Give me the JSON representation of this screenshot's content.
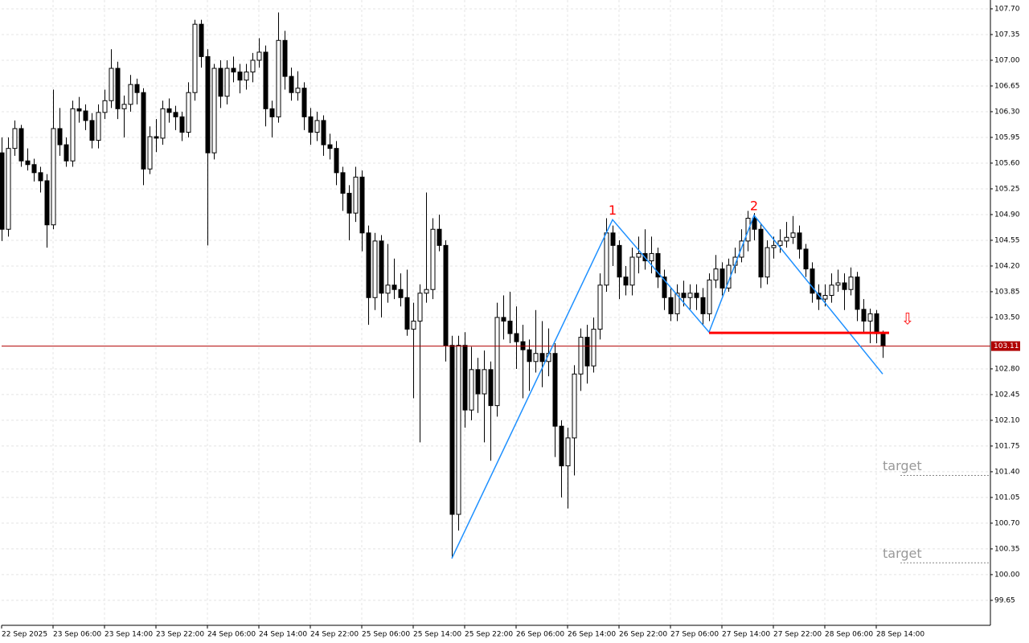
{
  "chart_data": {
    "type": "candlestick",
    "ylim": [
      99.31,
      107.82
    ],
    "xlim": [
      0,
      153.75
    ],
    "grid": true,
    "up_color": "#ffffff",
    "down_color": "#000000",
    "yticks": [
      {
        "value": 107.7,
        "label": "107.70"
      },
      107.35,
      {
        "value": 107.0,
        "label": "107.00"
      },
      106.65,
      {
        "value": 106.3,
        "label": "106.30"
      },
      105.95,
      {
        "value": 105.6,
        "label": "105.60"
      },
      105.25,
      {
        "value": 104.9,
        "label": "104.90"
      },
      104.55,
      {
        "value": 104.2,
        "label": "104.20"
      },
      103.85,
      {
        "value": 103.5,
        "label": "103.50"
      },
      {
        "value": 102.8,
        "label": "102.80"
      },
      102.45,
      {
        "value": 102.1,
        "label": "102.10"
      },
      101.75,
      {
        "value": 101.4,
        "label": "101.40"
      },
      101.05,
      {
        "value": 100.7,
        "label": "100.70"
      },
      100.35,
      {
        "value": 100.0,
        "label": "100.00"
      },
      99.65
    ],
    "xticks": [
      {
        "value": 0,
        "label": "22 Sep 2025"
      },
      {
        "value": 8,
        "label": "23 Sep 06:00"
      },
      {
        "value": 16,
        "label": "23 Sep 14:00"
      },
      {
        "value": 24,
        "label": "23 Sep 22:00"
      },
      {
        "value": 32,
        "label": "24 Sep 06:00"
      },
      {
        "value": 40,
        "label": "24 Sep 14:00"
      },
      {
        "value": 48,
        "label": "24 Sep 22:00"
      },
      {
        "value": 56,
        "label": "25 Sep 06:00"
      },
      {
        "value": 64,
        "label": "25 Sep 14:00"
      },
      {
        "value": 72,
        "label": "25 Sep 22:00"
      },
      {
        "value": 80,
        "label": "26 Sep 06:00"
      },
      {
        "value": 88,
        "label": "26 Sep 14:00"
      },
      {
        "value": 96,
        "label": "26 Sep 22:00"
      },
      {
        "value": 104,
        "label": "27 Sep 06:00"
      },
      {
        "value": 112,
        "label": "27 Sep 14:00"
      },
      {
        "value": 120,
        "label": "27 Sep 22:00"
      },
      {
        "value": 128,
        "label": "28 Sep 06:00"
      },
      {
        "value": 136,
        "label": "28 Sep 14:00"
      }
    ],
    "ohlc": [
      [
        105.74,
        105.95,
        104.54,
        104.7
      ],
      [
        104.7,
        105.95,
        104.6,
        105.8
      ],
      [
        105.8,
        106.18,
        105.7,
        106.07
      ],
      [
        106.07,
        106.12,
        105.55,
        105.63
      ],
      [
        105.63,
        105.8,
        105.5,
        105.58
      ],
      [
        105.58,
        105.66,
        105.35,
        105.47
      ],
      [
        105.47,
        105.55,
        105.2,
        105.36
      ],
      [
        105.36,
        105.45,
        104.45,
        104.76
      ],
      [
        104.76,
        106.6,
        104.7,
        106.07
      ],
      [
        106.07,
        106.35,
        105.7,
        105.85
      ],
      [
        105.85,
        105.95,
        105.55,
        105.63
      ],
      [
        105.63,
        106.45,
        105.55,
        106.34
      ],
      [
        106.34,
        106.5,
        106.15,
        106.31
      ],
      [
        106.31,
        106.4,
        106.05,
        106.18
      ],
      [
        106.18,
        106.28,
        105.8,
        105.91
      ],
      [
        105.91,
        106.4,
        105.8,
        106.29
      ],
      [
        106.29,
        106.6,
        106.2,
        106.45
      ],
      [
        106.45,
        107.15,
        106.35,
        106.89
      ],
      [
        106.89,
        106.98,
        106.2,
        106.34
      ],
      [
        106.34,
        106.52,
        105.95,
        106.4
      ],
      [
        106.4,
        106.8,
        106.3,
        106.67
      ],
      [
        106.67,
        106.75,
        106.4,
        106.56
      ],
      [
        106.56,
        106.62,
        105.3,
        105.52
      ],
      [
        105.52,
        106.1,
        105.45,
        105.96
      ],
      [
        105.96,
        106.2,
        105.75,
        105.94
      ],
      [
        105.94,
        106.45,
        105.85,
        106.34
      ],
      [
        106.34,
        106.48,
        106.15,
        106.29
      ],
      [
        106.29,
        106.38,
        106.05,
        106.23
      ],
      [
        106.23,
        106.3,
        105.9,
        106.02
      ],
      [
        106.02,
        106.7,
        105.95,
        106.56
      ],
      [
        106.56,
        107.55,
        106.45,
        107.49
      ],
      [
        107.49,
        107.55,
        106.9,
        107.05
      ],
      [
        107.05,
        107.15,
        104.48,
        105.74
      ],
      [
        105.74,
        106.95,
        105.65,
        106.89
      ],
      [
        106.89,
        107.0,
        106.35,
        106.51
      ],
      [
        106.51,
        107.0,
        106.4,
        106.89
      ],
      [
        106.89,
        107.05,
        106.7,
        106.84
      ],
      [
        106.84,
        106.95,
        106.55,
        106.73
      ],
      [
        106.73,
        106.95,
        106.6,
        106.84
      ],
      [
        106.84,
        107.1,
        106.7,
        107.0
      ],
      [
        107.0,
        107.3,
        106.9,
        107.11
      ],
      [
        107.11,
        107.2,
        106.1,
        106.34
      ],
      [
        106.34,
        106.45,
        105.95,
        106.23
      ],
      [
        106.23,
        107.65,
        106.15,
        107.27
      ],
      [
        107.27,
        107.4,
        106.6,
        106.78
      ],
      [
        106.78,
        106.9,
        106.45,
        106.56
      ],
      [
        106.56,
        106.85,
        106.45,
        106.62
      ],
      [
        106.62,
        106.7,
        106.05,
        106.23
      ],
      [
        106.23,
        106.35,
        105.85,
        106.02
      ],
      [
        106.02,
        106.3,
        105.9,
        106.18
      ],
      [
        106.18,
        106.25,
        105.7,
        105.85
      ],
      [
        105.85,
        106.0,
        105.65,
        105.8
      ],
      [
        105.8,
        105.9,
        105.3,
        105.47
      ],
      [
        105.47,
        105.55,
        104.95,
        105.19
      ],
      [
        105.19,
        105.3,
        104.55,
        104.92
      ],
      [
        104.92,
        105.55,
        104.8,
        105.41
      ],
      [
        105.41,
        105.5,
        104.4,
        104.65
      ],
      [
        104.65,
        104.75,
        103.4,
        103.77
      ],
      [
        103.77,
        104.65,
        103.6,
        104.54
      ],
      [
        104.54,
        104.62,
        103.5,
        103.83
      ],
      [
        103.83,
        104.5,
        103.7,
        103.94
      ],
      [
        103.94,
        104.3,
        103.75,
        103.88
      ],
      [
        103.88,
        104.1,
        103.65,
        103.77
      ],
      [
        103.77,
        104.15,
        103.25,
        103.34
      ],
      [
        103.34,
        103.7,
        102.4,
        103.45
      ],
      [
        103.45,
        103.95,
        101.8,
        103.83
      ],
      [
        103.83,
        105.2,
        103.7,
        103.88
      ],
      [
        103.88,
        104.85,
        103.75,
        104.7
      ],
      [
        104.7,
        104.9,
        104.4,
        104.48
      ],
      [
        104.48,
        104.55,
        102.9,
        103.12
      ],
      [
        103.12,
        103.25,
        100.22,
        100.82
      ],
      [
        100.82,
        103.25,
        100.6,
        103.12
      ],
      [
        103.12,
        103.3,
        102.0,
        102.24
      ],
      [
        102.24,
        103.1,
        102.1,
        102.79
      ],
      [
        102.79,
        102.95,
        102.2,
        102.46
      ],
      [
        102.46,
        103.05,
        101.8,
        102.79
      ],
      [
        102.79,
        102.9,
        101.55,
        102.3
      ],
      [
        102.3,
        103.7,
        102.15,
        103.5
      ],
      [
        103.5,
        103.8,
        103.2,
        103.45
      ],
      [
        103.45,
        103.85,
        103.15,
        103.28
      ],
      [
        103.28,
        103.65,
        102.8,
        103.17
      ],
      [
        103.17,
        103.4,
        102.4,
        103.06
      ],
      [
        103.06,
        103.2,
        102.5,
        102.9
      ],
      [
        102.9,
        103.6,
        102.75,
        103.01
      ],
      [
        103.01,
        103.45,
        102.55,
        102.9
      ],
      [
        102.9,
        103.35,
        102.7,
        103.01
      ],
      [
        103.01,
        103.15,
        101.6,
        102.02
      ],
      [
        102.02,
        102.1,
        101.05,
        101.48
      ],
      [
        101.48,
        102.0,
        100.9,
        101.86
      ],
      [
        101.86,
        102.85,
        101.35,
        102.73
      ],
      [
        102.73,
        103.35,
        102.5,
        103.23
      ],
      [
        103.23,
        103.4,
        102.6,
        102.84
      ],
      [
        102.84,
        103.5,
        102.75,
        103.34
      ],
      [
        103.34,
        104.1,
        103.2,
        103.94
      ],
      [
        103.94,
        104.85,
        103.85,
        104.65
      ],
      [
        104.65,
        104.75,
        104.2,
        104.48
      ],
      [
        104.48,
        104.55,
        103.75,
        104.05
      ],
      [
        104.05,
        104.2,
        103.8,
        103.94
      ],
      [
        103.94,
        104.45,
        103.8,
        104.32
      ],
      [
        104.32,
        104.6,
        104.1,
        104.37
      ],
      [
        104.37,
        104.7,
        104.15,
        104.27
      ],
      [
        104.27,
        104.6,
        104.1,
        104.37
      ],
      [
        104.37,
        104.45,
        103.9,
        104.05
      ],
      [
        104.05,
        104.15,
        103.6,
        103.77
      ],
      [
        103.77,
        103.9,
        103.45,
        103.55
      ],
      [
        103.55,
        103.95,
        103.45,
        103.83
      ],
      [
        103.83,
        104.0,
        103.65,
        103.77
      ],
      [
        103.77,
        103.95,
        103.6,
        103.83
      ],
      [
        103.83,
        103.95,
        103.6,
        103.77
      ],
      [
        103.77,
        103.9,
        103.4,
        103.55
      ],
      [
        103.55,
        104.1,
        103.45,
        104.01
      ],
      [
        104.01,
        104.35,
        103.9,
        104.16
      ],
      [
        104.16,
        104.25,
        103.8,
        103.9
      ],
      [
        103.9,
        104.3,
        103.85,
        104.21
      ],
      [
        104.21,
        104.45,
        104.1,
        104.32
      ],
      [
        104.32,
        104.7,
        104.25,
        104.54
      ],
      [
        104.54,
        104.95,
        104.4,
        104.85
      ],
      [
        104.85,
        104.92,
        104.55,
        104.7
      ],
      [
        104.7,
        104.78,
        103.9,
        104.05
      ],
      [
        104.05,
        104.55,
        103.95,
        104.45
      ],
      [
        104.45,
        104.6,
        104.3,
        104.48
      ],
      [
        104.48,
        104.7,
        104.38,
        104.54
      ],
      [
        104.54,
        104.8,
        104.45,
        104.59
      ],
      [
        104.59,
        104.88,
        104.5,
        104.65
      ],
      [
        104.65,
        104.75,
        104.3,
        104.43
      ],
      [
        104.43,
        104.5,
        104.05,
        104.16
      ],
      [
        104.16,
        104.25,
        103.7,
        103.83
      ],
      [
        103.83,
        103.95,
        103.6,
        103.75
      ],
      [
        103.75,
        103.95,
        103.65,
        103.8
      ],
      [
        103.8,
        104.1,
        103.7,
        103.94
      ],
      [
        103.94,
        104.15,
        103.85,
        103.97
      ],
      [
        103.97,
        104.1,
        103.6,
        103.88
      ],
      [
        103.88,
        104.18,
        103.8,
        104.05
      ],
      [
        104.05,
        104.12,
        103.45,
        103.61
      ],
      [
        103.61,
        103.75,
        103.3,
        103.45
      ],
      [
        103.45,
        103.62,
        103.15,
        103.55
      ],
      [
        103.55,
        103.6,
        103.15,
        103.28
      ],
      [
        103.28,
        103.32,
        102.95,
        103.11
      ]
    ],
    "zigzag": {
      "color": "#1e90ff",
      "x": [
        70,
        95,
        110,
        117,
        137
      ],
      "y": [
        100.22,
        104.83,
        103.3,
        104.89,
        102.73
      ]
    },
    "peak_labels": [
      "1",
      "2"
    ],
    "neckline": {
      "color": "#ff0000",
      "x": [
        110,
        138
      ],
      "y": 103.29
    },
    "targets": [
      {
        "label": "target",
        "value": 101.35
      },
      {
        "label": "target",
        "value": 100.16
      }
    ],
    "last_price": 103.11,
    "last_price_color": "#b00000"
  }
}
